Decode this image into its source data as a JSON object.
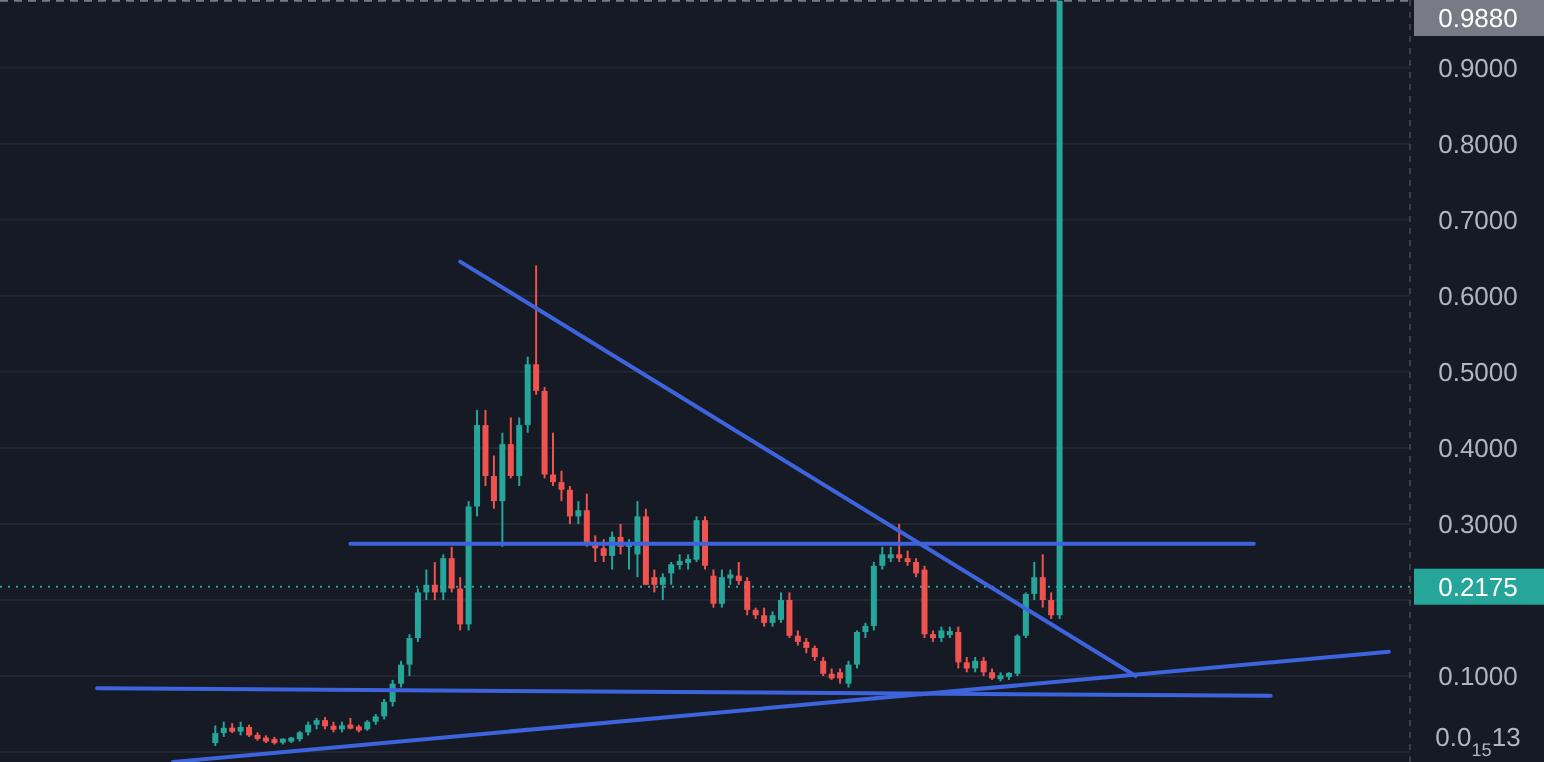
{
  "chart_data": {
    "type": "candlestick",
    "categories": [
      null,
      null,
      null,
      null,
      null,
      null,
      null,
      null,
      null,
      null,
      null,
      null,
      null,
      null,
      null,
      null,
      null,
      null,
      null,
      null,
      null,
      null,
      null,
      null,
      null,
      null,
      null,
      null,
      null,
      null,
      null,
      null,
      null,
      null,
      null,
      null,
      null,
      null,
      null,
      null,
      null,
      null,
      null,
      null,
      null,
      null,
      null,
      null,
      null,
      null,
      null,
      null,
      null,
      null,
      null,
      null,
      null,
      null,
      null,
      null,
      null,
      null,
      null,
      null,
      null,
      null,
      null,
      null,
      null,
      null,
      null,
      null,
      null,
      null,
      null,
      null,
      null,
      null,
      null,
      null,
      null,
      null,
      null,
      null,
      null,
      null,
      null,
      null,
      null,
      null,
      null,
      null,
      null,
      null,
      null,
      null,
      null,
      null,
      null,
      null,
      null,
      null,
      null,
      null,
      null,
      null,
      null,
      null,
      null,
      null,
      null,
      null,
      null,
      null,
      null,
      null,
      null,
      null,
      null,
      null,
      null,
      null,
      null,
      null,
      null,
      null,
      null,
      null,
      null,
      null,
      null,
      null,
      null,
      null,
      null,
      null,
      null,
      null,
      null,
      null,
      null,
      null,
      null,
      null,
      null,
      null,
      null,
      null,
      null,
      null,
      null,
      null,
      null,
      null,
      null,
      null,
      null,
      null,
      null,
      null,
      null,
      null,
      null,
      null,
      null,
      null,
      null
    ],
    "ohlc": [
      null,
      null,
      null,
      null,
      null,
      null,
      null,
      null,
      null,
      null,
      null,
      null,
      null,
      null,
      null,
      null,
      null,
      null,
      null,
      null,
      null,
      null,
      null,
      null,
      null,
      [
        0.012,
        0.035,
        0.008,
        0.025
      ],
      [
        0.025,
        0.04,
        0.02,
        0.032
      ],
      [
        0.032,
        0.038,
        0.025,
        0.027
      ],
      [
        0.027,
        0.04,
        0.022,
        0.033
      ],
      [
        0.033,
        0.036,
        0.02,
        0.022
      ],
      [
        0.022,
        0.026,
        0.015,
        0.018
      ],
      [
        0.018,
        0.022,
        0.012,
        0.015
      ],
      [
        0.015,
        0.02,
        0.01,
        0.014
      ],
      [
        0.014,
        0.018,
        0.01,
        0.016
      ],
      [
        0.016,
        0.02,
        0.012,
        0.017
      ],
      [
        0.017,
        0.028,
        0.014,
        0.026
      ],
      [
        0.026,
        0.04,
        0.022,
        0.036
      ],
      [
        0.036,
        0.045,
        0.03,
        0.042
      ],
      [
        0.042,
        0.046,
        0.03,
        0.034
      ],
      [
        0.034,
        0.04,
        0.026,
        0.03
      ],
      [
        0.03,
        0.04,
        0.026,
        0.035
      ],
      [
        0.035,
        0.045,
        0.03,
        0.032
      ],
      [
        0.032,
        0.036,
        0.026,
        0.03
      ],
      [
        0.03,
        0.042,
        0.028,
        0.04
      ],
      [
        0.04,
        0.05,
        0.036,
        0.047
      ],
      [
        0.047,
        0.07,
        0.043,
        0.066
      ],
      [
        0.066,
        0.095,
        0.06,
        0.09
      ],
      [
        0.09,
        0.12,
        0.085,
        0.115
      ],
      [
        0.115,
        0.155,
        0.1,
        0.15
      ],
      [
        0.15,
        0.215,
        0.145,
        0.21
      ],
      [
        0.21,
        0.24,
        0.2,
        0.22
      ],
      [
        0.22,
        0.25,
        0.2,
        0.21
      ],
      [
        0.21,
        0.26,
        0.2,
        0.255
      ],
      [
        0.255,
        0.27,
        0.21,
        0.215
      ],
      [
        0.215,
        0.23,
        0.16,
        0.168
      ],
      [
        0.168,
        0.33,
        0.16,
        0.323
      ],
      [
        0.323,
        0.45,
        0.31,
        0.43
      ],
      [
        0.43,
        0.45,
        0.35,
        0.363
      ],
      [
        0.363,
        0.39,
        0.32,
        0.33
      ],
      [
        0.33,
        0.42,
        0.27,
        0.405
      ],
      [
        0.405,
        0.44,
        0.36,
        0.363
      ],
      [
        0.363,
        0.44,
        0.35,
        0.43
      ],
      [
        0.43,
        0.52,
        0.42,
        0.51
      ],
      [
        0.51,
        0.64,
        0.47,
        0.475
      ],
      [
        0.475,
        0.48,
        0.36,
        0.365
      ],
      [
        0.365,
        0.42,
        0.35,
        0.355
      ],
      [
        0.355,
        0.37,
        0.33,
        0.345
      ],
      [
        0.345,
        0.35,
        0.3,
        0.31
      ],
      [
        0.31,
        0.33,
        0.3,
        0.318
      ],
      [
        0.318,
        0.34,
        0.27,
        0.274
      ],
      [
        0.274,
        0.285,
        0.25,
        0.268
      ],
      [
        0.268,
        0.28,
        0.25,
        0.258
      ],
      [
        0.258,
        0.29,
        0.24,
        0.283
      ],
      [
        0.283,
        0.3,
        0.26,
        0.27
      ],
      [
        0.27,
        0.28,
        0.24,
        0.275
      ],
      [
        0.26,
        0.33,
        0.23,
        0.31
      ],
      [
        0.31,
        0.32,
        0.22,
        0.22
      ],
      [
        0.23,
        0.24,
        0.21,
        0.22
      ],
      [
        0.22,
        0.235,
        0.2,
        0.23
      ],
      [
        0.235,
        0.25,
        0.22,
        0.247
      ],
      [
        0.247,
        0.26,
        0.24,
        0.25
      ],
      [
        0.25,
        0.26,
        0.24,
        0.253
      ],
      [
        0.253,
        0.31,
        0.25,
        0.305
      ],
      [
        0.305,
        0.31,
        0.24,
        0.245
      ],
      [
        0.232,
        0.24,
        0.19,
        0.195
      ],
      [
        0.195,
        0.24,
        0.19,
        0.23
      ],
      [
        0.23,
        0.24,
        0.22,
        0.232
      ],
      [
        0.232,
        0.25,
        0.22,
        0.225
      ],
      [
        0.225,
        0.23,
        0.18,
        0.187
      ],
      [
        0.187,
        0.19,
        0.175,
        0.18
      ],
      [
        0.18,
        0.19,
        0.165,
        0.17
      ],
      [
        0.17,
        0.185,
        0.165,
        0.18
      ],
      [
        0.174,
        0.21,
        0.17,
        0.2
      ],
      [
        0.2,
        0.21,
        0.15,
        0.153
      ],
      [
        0.153,
        0.16,
        0.14,
        0.145
      ],
      [
        0.145,
        0.15,
        0.13,
        0.137
      ],
      [
        0.137,
        0.14,
        0.12,
        0.125
      ],
      [
        0.12,
        0.125,
        0.1,
        0.103
      ],
      [
        0.103,
        0.11,
        0.095,
        0.097
      ],
      [
        0.105,
        0.11,
        0.09,
        0.097
      ],
      [
        0.09,
        0.12,
        0.085,
        0.115
      ],
      [
        0.115,
        0.16,
        0.11,
        0.158
      ],
      [
        0.158,
        0.17,
        0.15,
        0.166
      ],
      [
        0.166,
        0.25,
        0.16,
        0.245
      ],
      [
        0.245,
        0.27,
        0.24,
        0.26
      ],
      [
        0.255,
        0.27,
        0.25,
        0.26
      ],
      [
        0.26,
        0.3,
        0.25,
        0.255
      ],
      [
        0.255,
        0.265,
        0.245,
        0.25
      ],
      [
        0.25,
        0.255,
        0.23,
        0.235
      ],
      [
        0.24,
        0.245,
        0.15,
        0.155
      ],
      [
        0.155,
        0.16,
        0.145,
        0.15
      ],
      [
        0.15,
        0.165,
        0.145,
        0.16
      ],
      [
        0.155,
        0.165,
        0.15,
        0.158
      ],
      [
        0.158,
        0.165,
        0.11,
        0.118
      ],
      [
        0.118,
        0.125,
        0.105,
        0.11
      ],
      [
        0.11,
        0.125,
        0.105,
        0.12
      ],
      [
        0.12,
        0.125,
        0.1,
        0.105
      ],
      [
        0.105,
        0.11,
        0.095,
        0.097
      ],
      [
        0.097,
        0.105,
        0.093,
        0.1
      ],
      [
        0.1,
        0.105,
        0.095,
        0.103
      ],
      [
        0.103,
        0.155,
        0.1,
        0.153
      ],
      [
        0.153,
        0.21,
        0.15,
        0.208
      ],
      [
        0.208,
        0.25,
        0.2,
        0.23
      ],
      [
        0.23,
        0.26,
        0.19,
        0.2
      ],
      [
        0.2,
        0.21,
        0.175,
        0.18
      ],
      [
        0.18,
        0.988,
        0.175,
        0.988
      ],
      null,
      null,
      null,
      null,
      null,
      null,
      null,
      null,
      null,
      null,
      null,
      null,
      null,
      null,
      null,
      null,
      null,
      null,
      null,
      null,
      null,
      null,
      null,
      null,
      null,
      null,
      null,
      null,
      null,
      null,
      null,
      null,
      null,
      null,
      null,
      null,
      null,
      null,
      null,
      null,
      null
    ],
    "series": [
      {
        "type": "line",
        "color": "#3d63dd",
        "values": [
          null,
          null,
          null,
          null,
          null,
          null,
          null,
          null,
          null,
          null,
          null,
          null,
          null,
          null,
          null,
          null,
          null,
          null,
          null,
          null,
          null,
          null,
          null,
          null,
          null,
          null,
          null,
          null,
          null,
          null,
          null,
          null,
          null,
          null,
          null,
          null,
          null,
          null,
          null,
          null,
          null,
          0.274,
          null,
          null,
          null,
          null,
          null,
          null,
          null,
          null,
          null,
          null,
          null,
          null,
          null,
          null,
          null,
          null,
          null,
          null,
          null,
          null,
          null,
          null,
          null,
          null,
          null,
          null,
          null,
          null,
          null,
          null,
          null,
          null,
          null,
          null,
          null,
          null,
          null,
          null,
          null,
          null,
          null,
          null,
          null,
          null,
          null,
          null,
          null,
          null,
          null,
          null,
          null,
          null,
          null,
          null,
          null,
          null,
          null,
          null,
          null,
          null,
          null,
          null,
          null,
          null,
          null,
          null,
          null,
          null,
          null,
          null,
          null,
          null,
          null,
          null,
          null,
          null,
          null,
          null,
          null,
          null,
          null,
          null,
          null,
          null,
          null,
          null,
          null,
          null,
          null,
          null,
          null,
          null,
          null,
          null,
          null,
          null,
          null,
          null,
          null,
          null,
          null,
          null,
          null,
          null,
          null,
          null,
          0.274,
          null,
          null,
          null,
          null,
          null,
          null,
          null,
          null,
          null,
          null,
          null,
          null,
          null,
          null,
          null,
          null,
          null,
          null
        ]
      },
      {
        "type": "line",
        "color": "#3d63dd",
        "values": [
          null,
          null,
          null,
          null,
          null,
          null,
          null,
          null,
          null,
          null,
          null,
          null,
          null,
          null,
          null,
          null,
          null,
          null,
          null,
          null,
          null,
          null,
          null,
          null,
          null,
          null,
          null,
          null,
          null,
          null,
          null,
          null,
          null,
          null,
          null,
          null,
          null,
          null,
          null,
          null,
          null,
          null,
          null,
          null,
          null,
          null,
          null,
          null,
          null,
          null,
          null,
          null,
          null,
          null,
          0.645,
          null,
          null,
          null,
          null,
          null,
          null,
          null,
          null,
          null,
          null,
          null,
          null,
          null,
          null,
          null,
          null,
          null,
          null,
          null,
          null,
          null,
          null,
          null,
          null,
          null,
          null,
          null,
          null,
          null,
          null,
          null,
          null,
          null,
          null,
          null,
          null,
          null,
          null,
          null,
          null,
          null,
          null,
          null,
          null,
          null,
          null,
          null,
          null,
          null,
          null,
          null,
          null,
          null,
          null,
          null,
          null,
          null,
          null,
          null,
          null,
          null,
          null,
          null,
          null,
          null,
          null,
          null,
          null,
          null,
          null,
          null,
          null,
          null,
          null,
          null,
          null,
          null,
          null,
          null,
          0.1,
          null,
          null,
          null,
          null,
          null,
          null,
          null,
          null,
          null,
          null,
          null,
          null,
          null,
          null,
          null,
          null,
          null,
          null,
          null,
          null,
          null,
          null,
          null,
          null,
          null,
          null,
          null,
          null,
          null,
          null,
          null,
          null
        ]
      },
      {
        "type": "line",
        "color": "#3d63dd",
        "values": [
          null,
          null,
          null,
          null,
          null,
          null,
          null,
          null,
          null,
          null,
          null,
          null,
          null,
          null,
          null,
          null,
          null,
          null,
          null,
          null,
          -0.013,
          null,
          null,
          null,
          null,
          null,
          null,
          null,
          null,
          null,
          null,
          null,
          null,
          null,
          null,
          null,
          null,
          null,
          null,
          null,
          null,
          null,
          null,
          null,
          null,
          null,
          null,
          null,
          null,
          null,
          null,
          null,
          null,
          null,
          null,
          null,
          null,
          null,
          null,
          null,
          null,
          null,
          null,
          null,
          null,
          null,
          null,
          null,
          null,
          null,
          null,
          null,
          null,
          null,
          null,
          null,
          null,
          null,
          null,
          null,
          null,
          null,
          null,
          null,
          null,
          null,
          null,
          null,
          null,
          null,
          null,
          null,
          null,
          null,
          null,
          null,
          null,
          null,
          null,
          null,
          null,
          null,
          null,
          null,
          null,
          null,
          null,
          null,
          null,
          null,
          null,
          null,
          null,
          null,
          null,
          null,
          null,
          null,
          null,
          null,
          null,
          null,
          null,
          null,
          null,
          null,
          null,
          null,
          null,
          null,
          null,
          null,
          null,
          null,
          null,
          null,
          null,
          null,
          null,
          null,
          null,
          null,
          null,
          null,
          null,
          null,
          null,
          null,
          null,
          null,
          null,
          null,
          null,
          null,
          null,
          null,
          null,
          null,
          null,
          null,
          null,
          null,
          null,
          null,
          0.132,
          null,
          null
        ]
      },
      {
        "type": "line",
        "color": "#3d63dd",
        "values": [
          null,
          null,
          null,
          null,
          null,
          null,
          null,
          null,
          null,
          null,
          null,
          0.084,
          null,
          null,
          null,
          null,
          null,
          null,
          null,
          null,
          null,
          null,
          null,
          null,
          null,
          null,
          null,
          null,
          null,
          null,
          null,
          null,
          null,
          null,
          null,
          null,
          null,
          null,
          null,
          null,
          null,
          null,
          null,
          null,
          null,
          null,
          null,
          null,
          null,
          null,
          null,
          null,
          null,
          null,
          null,
          null,
          null,
          null,
          null,
          null,
          null,
          null,
          null,
          null,
          null,
          null,
          null,
          null,
          null,
          null,
          null,
          null,
          null,
          null,
          null,
          null,
          null,
          null,
          null,
          null,
          null,
          null,
          null,
          null,
          null,
          null,
          null,
          null,
          null,
          null,
          null,
          null,
          null,
          null,
          null,
          null,
          null,
          null,
          null,
          null,
          null,
          null,
          null,
          null,
          null,
          null,
          null,
          null,
          null,
          null,
          null,
          null,
          null,
          null,
          null,
          null,
          null,
          null,
          null,
          null,
          null,
          null,
          null,
          null,
          null,
          null,
          null,
          null,
          null,
          null,
          null,
          null,
          null,
          null,
          null,
          null,
          null,
          null,
          null,
          null,
          null,
          null,
          null,
          null,
          null,
          null,
          null,
          null,
          null,
          null,
          0.074,
          null,
          null,
          null,
          null,
          null,
          null,
          null,
          null,
          null,
          null,
          null,
          null,
          null,
          null,
          null,
          null
        ]
      }
    ],
    "ylim": [
      -0.013,
      0.989
    ],
    "yticks": [
      {
        "value": 0,
        "label": "0.0$_{15}$13"
      },
      {
        "value": 0.1,
        "label": "0.1000"
      },
      {
        "value": 0.2,
        "label": null
      },
      {
        "value": 0.3,
        "label": "0.3000"
      },
      {
        "value": 0.4,
        "label": "0.4000"
      },
      {
        "value": 0.5,
        "label": "0.5000"
      },
      {
        "value": 0.6,
        "label": "0.6000"
      },
      {
        "value": 0.7,
        "label": "0.7000"
      },
      {
        "value": 0.8,
        "label": "0.8000"
      },
      {
        "value": 0.9,
        "label": "0.9000"
      }
    ],
    "ref_lines": [
      {
        "axis": "y",
        "value": 0.988,
        "label": "0.9880",
        "color": "#787b86",
        "line_style": "dashed"
      },
      {
        "axis": "y",
        "value": 0.2175,
        "label": "0.2175",
        "color": "#26a69a",
        "line_style": "dotted"
      }
    ],
    "grid": true,
    "tick_labels": "y"
  }
}
